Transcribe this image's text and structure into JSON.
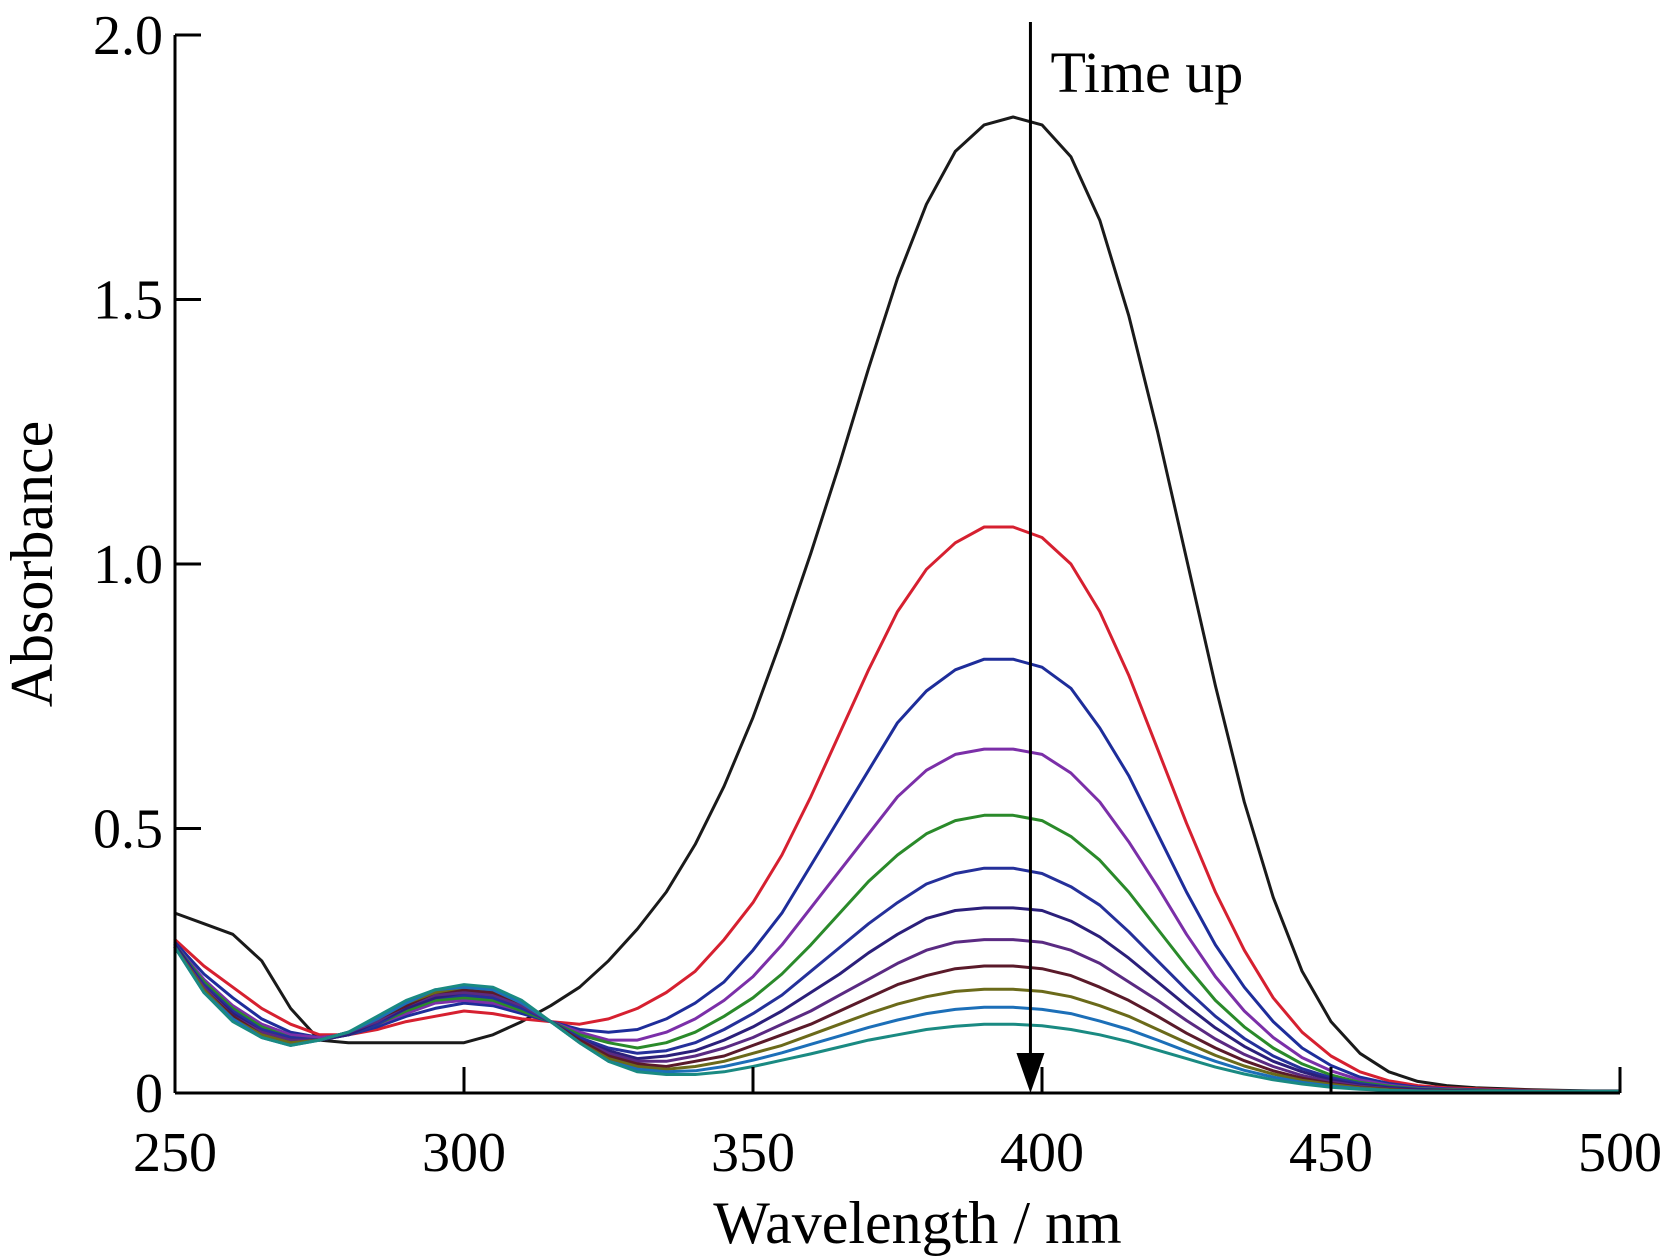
{
  "chart_data": {
    "type": "line",
    "title": "",
    "xlabel": "Wavelength / nm",
    "ylabel": "Absorbance",
    "xlim": [
      250,
      500
    ],
    "ylim": [
      0,
      2.0
    ],
    "x_ticks": [
      250,
      300,
      350,
      400,
      450,
      500
    ],
    "x_tick_labels": [
      "250",
      "300",
      "350",
      "400",
      "450",
      "500"
    ],
    "y_ticks": [
      0,
      0.5,
      1.0,
      1.5,
      2.0
    ],
    "y_tick_labels": [
      "0",
      "0.5",
      "1.0",
      "1.5",
      "2.0"
    ],
    "grid": false,
    "legend": "none",
    "annotation": {
      "text": "Time up",
      "arrow_x": 398,
      "arrow_from_y": 2.0,
      "arrow_to_y": 0.0,
      "direction": "down"
    },
    "x": [
      250,
      255,
      260,
      265,
      270,
      275,
      280,
      285,
      290,
      295,
      300,
      305,
      310,
      315,
      320,
      325,
      330,
      335,
      340,
      345,
      350,
      355,
      360,
      365,
      370,
      375,
      380,
      385,
      390,
      395,
      400,
      405,
      410,
      415,
      420,
      425,
      430,
      435,
      440,
      445,
      450,
      455,
      460,
      465,
      470,
      475,
      480,
      485,
      490,
      495,
      500
    ],
    "series": [
      {
        "color": "#1a1a1a",
        "values": [
          0.34,
          0.32,
          0.3,
          0.25,
          0.16,
          0.1,
          0.095,
          0.095,
          0.095,
          0.095,
          0.095,
          0.11,
          0.135,
          0.165,
          0.2,
          0.25,
          0.31,
          0.38,
          0.47,
          0.58,
          0.71,
          0.86,
          1.02,
          1.19,
          1.37,
          1.54,
          1.68,
          1.78,
          1.83,
          1.845,
          1.83,
          1.77,
          1.65,
          1.47,
          1.25,
          1.01,
          0.77,
          0.55,
          0.37,
          0.23,
          0.135,
          0.075,
          0.04,
          0.022,
          0.014,
          0.01,
          0.008,
          0.006,
          0.005,
          0.004,
          0.004
        ]
      },
      {
        "color": "#d62030",
        "values": [
          0.29,
          0.24,
          0.2,
          0.16,
          0.13,
          0.11,
          0.11,
          0.12,
          0.135,
          0.145,
          0.155,
          0.15,
          0.14,
          0.135,
          0.13,
          0.14,
          0.16,
          0.19,
          0.23,
          0.29,
          0.36,
          0.45,
          0.56,
          0.68,
          0.8,
          0.91,
          0.99,
          1.04,
          1.07,
          1.07,
          1.05,
          1.0,
          0.91,
          0.79,
          0.65,
          0.51,
          0.38,
          0.27,
          0.18,
          0.115,
          0.07,
          0.04,
          0.023,
          0.014,
          0.01,
          0.008,
          0.006,
          0.005,
          0.004,
          0.003,
          0.003
        ]
      },
      {
        "color": "#1e2d9a",
        "values": [
          0.285,
          0.225,
          0.18,
          0.14,
          0.115,
          0.105,
          0.11,
          0.125,
          0.145,
          0.16,
          0.17,
          0.165,
          0.15,
          0.135,
          0.12,
          0.115,
          0.12,
          0.14,
          0.17,
          0.21,
          0.27,
          0.34,
          0.43,
          0.52,
          0.61,
          0.7,
          0.76,
          0.8,
          0.82,
          0.82,
          0.805,
          0.765,
          0.69,
          0.6,
          0.49,
          0.38,
          0.28,
          0.2,
          0.135,
          0.085,
          0.052,
          0.03,
          0.018,
          0.011,
          0.008,
          0.006,
          0.005,
          0.004,
          0.003,
          0.003,
          0.003
        ]
      },
      {
        "color": "#7b2fa8",
        "values": [
          0.28,
          0.215,
          0.165,
          0.13,
          0.11,
          0.105,
          0.11,
          0.13,
          0.15,
          0.17,
          0.175,
          0.17,
          0.155,
          0.135,
          0.115,
          0.1,
          0.1,
          0.115,
          0.14,
          0.175,
          0.22,
          0.28,
          0.35,
          0.42,
          0.49,
          0.56,
          0.61,
          0.64,
          0.65,
          0.65,
          0.64,
          0.605,
          0.55,
          0.475,
          0.39,
          0.3,
          0.22,
          0.155,
          0.105,
          0.067,
          0.042,
          0.025,
          0.015,
          0.009,
          0.007,
          0.005,
          0.004,
          0.003,
          0.003,
          0.003,
          0.003
        ]
      },
      {
        "color": "#2a8a2a",
        "values": [
          0.28,
          0.21,
          0.16,
          0.125,
          0.105,
          0.1,
          0.11,
          0.13,
          0.155,
          0.175,
          0.18,
          0.175,
          0.155,
          0.135,
          0.11,
          0.095,
          0.085,
          0.095,
          0.115,
          0.145,
          0.18,
          0.225,
          0.28,
          0.34,
          0.4,
          0.45,
          0.49,
          0.515,
          0.525,
          0.525,
          0.515,
          0.485,
          0.44,
          0.38,
          0.31,
          0.24,
          0.175,
          0.125,
          0.085,
          0.055,
          0.034,
          0.02,
          0.013,
          0.008,
          0.006,
          0.005,
          0.004,
          0.003,
          0.003,
          0.003,
          0.003
        ]
      },
      {
        "color": "#25309a",
        "values": [
          0.28,
          0.205,
          0.155,
          0.12,
          0.105,
          0.1,
          0.11,
          0.13,
          0.16,
          0.18,
          0.185,
          0.18,
          0.16,
          0.135,
          0.105,
          0.085,
          0.075,
          0.08,
          0.095,
          0.12,
          0.15,
          0.185,
          0.23,
          0.275,
          0.32,
          0.36,
          0.395,
          0.415,
          0.425,
          0.425,
          0.415,
          0.39,
          0.355,
          0.305,
          0.25,
          0.195,
          0.145,
          0.103,
          0.07,
          0.046,
          0.029,
          0.018,
          0.011,
          0.007,
          0.005,
          0.004,
          0.003,
          0.003,
          0.003,
          0.003,
          0.003
        ]
      },
      {
        "color": "#2b1f7a",
        "values": [
          0.28,
          0.2,
          0.15,
          0.115,
          0.1,
          0.1,
          0.11,
          0.135,
          0.16,
          0.18,
          0.19,
          0.185,
          0.165,
          0.135,
          0.1,
          0.08,
          0.065,
          0.07,
          0.08,
          0.1,
          0.125,
          0.155,
          0.19,
          0.225,
          0.265,
          0.3,
          0.33,
          0.345,
          0.35,
          0.35,
          0.345,
          0.325,
          0.295,
          0.255,
          0.21,
          0.165,
          0.123,
          0.088,
          0.06,
          0.04,
          0.025,
          0.015,
          0.01,
          0.006,
          0.005,
          0.004,
          0.003,
          0.003,
          0.003,
          0.003,
          0.003
        ]
      },
      {
        "color": "#5a2a82",
        "values": [
          0.275,
          0.2,
          0.145,
          0.115,
          0.1,
          0.1,
          0.115,
          0.135,
          0.165,
          0.185,
          0.19,
          0.185,
          0.165,
          0.135,
          0.1,
          0.075,
          0.06,
          0.06,
          0.07,
          0.085,
          0.105,
          0.13,
          0.155,
          0.185,
          0.215,
          0.245,
          0.27,
          0.285,
          0.29,
          0.29,
          0.285,
          0.27,
          0.245,
          0.21,
          0.175,
          0.137,
          0.102,
          0.073,
          0.05,
          0.033,
          0.021,
          0.013,
          0.008,
          0.005,
          0.004,
          0.003,
          0.003,
          0.003,
          0.003,
          0.003,
          0.003
        ]
      },
      {
        "color": "#5a1a2a",
        "values": [
          0.275,
          0.195,
          0.145,
          0.11,
          0.095,
          0.1,
          0.115,
          0.14,
          0.165,
          0.19,
          0.195,
          0.19,
          0.17,
          0.135,
          0.1,
          0.07,
          0.055,
          0.05,
          0.06,
          0.07,
          0.09,
          0.11,
          0.13,
          0.155,
          0.18,
          0.205,
          0.222,
          0.235,
          0.24,
          0.24,
          0.235,
          0.222,
          0.2,
          0.175,
          0.145,
          0.113,
          0.085,
          0.061,
          0.042,
          0.028,
          0.018,
          0.011,
          0.007,
          0.005,
          0.004,
          0.003,
          0.003,
          0.003,
          0.003,
          0.003,
          0.003
        ]
      },
      {
        "color": "#6b6a1a",
        "values": [
          0.275,
          0.195,
          0.14,
          0.11,
          0.095,
          0.1,
          0.115,
          0.14,
          0.17,
          0.19,
          0.2,
          0.195,
          0.17,
          0.135,
          0.095,
          0.065,
          0.05,
          0.045,
          0.05,
          0.06,
          0.075,
          0.09,
          0.11,
          0.13,
          0.15,
          0.168,
          0.182,
          0.192,
          0.196,
          0.196,
          0.192,
          0.182,
          0.165,
          0.145,
          0.12,
          0.095,
          0.071,
          0.051,
          0.036,
          0.024,
          0.016,
          0.01,
          0.006,
          0.004,
          0.003,
          0.003,
          0.003,
          0.003,
          0.003,
          0.003,
          0.003
        ]
      },
      {
        "color": "#1c6fb8",
        "values": [
          0.275,
          0.19,
          0.14,
          0.105,
          0.09,
          0.1,
          0.115,
          0.14,
          0.17,
          0.195,
          0.2,
          0.195,
          0.17,
          0.135,
          0.095,
          0.06,
          0.045,
          0.04,
          0.042,
          0.05,
          0.062,
          0.076,
          0.092,
          0.108,
          0.124,
          0.138,
          0.15,
          0.158,
          0.162,
          0.162,
          0.158,
          0.15,
          0.136,
          0.12,
          0.1,
          0.079,
          0.06,
          0.043,
          0.03,
          0.02,
          0.013,
          0.008,
          0.005,
          0.004,
          0.003,
          0.003,
          0.003,
          0.003,
          0.003,
          0.003,
          0.003
        ]
      },
      {
        "color": "#1a8a82",
        "values": [
          0.275,
          0.19,
          0.135,
          0.105,
          0.09,
          0.1,
          0.115,
          0.145,
          0.175,
          0.195,
          0.205,
          0.2,
          0.175,
          0.135,
          0.095,
          0.06,
          0.04,
          0.035,
          0.035,
          0.04,
          0.05,
          0.062,
          0.074,
          0.087,
          0.1,
          0.11,
          0.12,
          0.126,
          0.13,
          0.13,
          0.127,
          0.12,
          0.11,
          0.097,
          0.081,
          0.065,
          0.049,
          0.036,
          0.025,
          0.017,
          0.011,
          0.007,
          0.005,
          0.003,
          0.003,
          0.003,
          0.003,
          0.003,
          0.003,
          0.003,
          0.003
        ]
      }
    ]
  }
}
